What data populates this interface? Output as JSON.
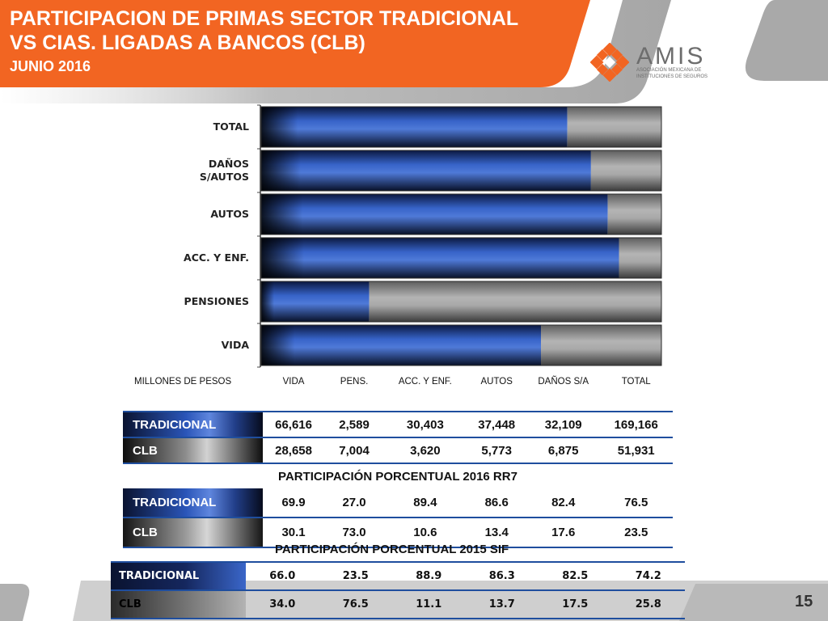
{
  "header": {
    "title_line1": "PARTICIPACION DE PRIMAS SECTOR TRADICIONAL",
    "title_line2": "VS CIAS. LIGADAS A BANCOS (CLB)",
    "subtitle": "JUNIO 2016",
    "orange": "#f26522",
    "gray": "#a6a6a6"
  },
  "logo": {
    "name": "AMIS",
    "tagline_line1": "ASOCIACIÓN MEXICANA DE",
    "tagline_line2": "INSTITUCIONES DE SEGUROS",
    "icon": "amis-logo-icon"
  },
  "chart_data": {
    "type": "bar",
    "orientation": "horizontal",
    "stacked": true,
    "categories": [
      "TOTAL",
      "DAÑOS S/AUTOS",
      "AUTOS",
      "ACC. Y ENF.",
      "PENSIONES",
      "VIDA"
    ],
    "category_lines": [
      [
        "TOTAL"
      ],
      [
        "DAÑOS",
        "S/AUTOS"
      ],
      [
        "AUTOS"
      ],
      [
        "ACC. Y ENF."
      ],
      [
        "PENSIONES"
      ],
      [
        "VIDA"
      ]
    ],
    "series": [
      {
        "values": [
          76.5,
          82.4,
          86.6,
          89.4,
          27.0,
          69.9
        ],
        "color": "#2a55b8"
      },
      {
        "values": [
          23.5,
          17.6,
          13.4,
          10.6,
          73.0,
          30.1
        ],
        "color": "#9a9a9a"
      }
    ],
    "xlim": [
      0,
      100
    ]
  },
  "table1": {
    "header": [
      "MILLONES DE PESOS",
      "VIDA",
      "PENS.",
      "ACC. Y ENF.",
      "AUTOS",
      "DAÑOS S/A",
      "TOTAL"
    ],
    "rows": [
      {
        "label": "TRADICIONAL",
        "values": [
          "66,616",
          "2,589",
          "30,403",
          "37,448",
          "32,109",
          "169,166"
        ]
      },
      {
        "label": "CLB",
        "values": [
          "28,658",
          "7,004",
          "3,620",
          "5,773",
          "6,875",
          "51,931"
        ]
      }
    ]
  },
  "table2": {
    "title": "PARTICIPACIÓN PORCENTUAL 2016 RR7",
    "rows": [
      {
        "label": "TRADICIONAL",
        "values": [
          "69.9",
          "27.0",
          "89.4",
          "86.6",
          "82.4",
          "76.5"
        ]
      },
      {
        "label": "CLB",
        "values": [
          "30.1",
          "73.0",
          "10.6",
          "13.4",
          "17.6",
          "23.5"
        ]
      }
    ]
  },
  "table3": {
    "title": "PARTICIPACIÓN PORCENTUAL 2015 SIF",
    "rows": [
      {
        "label": "TRADICIONAL",
        "values": [
          "66.0",
          "23.5",
          "88.9",
          "86.3",
          "82.5",
          "74.2"
        ]
      },
      {
        "label": "CLB",
        "values": [
          "34.0",
          "76.5",
          "11.1",
          "13.7",
          "17.5",
          "25.8"
        ]
      }
    ]
  },
  "page_number": "15"
}
